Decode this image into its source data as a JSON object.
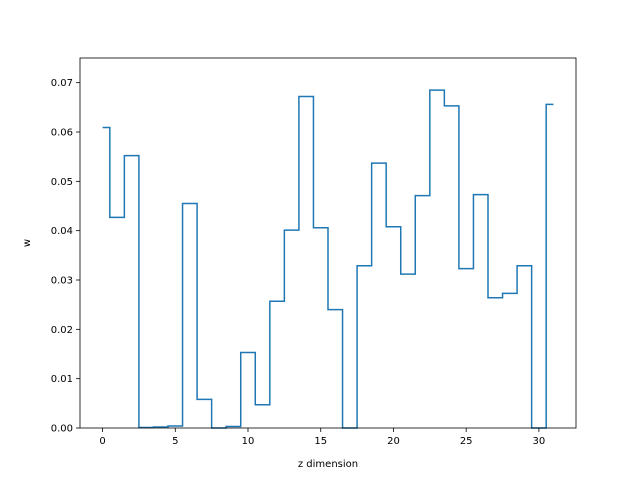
{
  "chart_data": {
    "type": "line",
    "drawstyle": "steps-mid",
    "xlabel": "z dimension",
    "ylabel": "w",
    "xlim": [
      -1.55,
      32.55
    ],
    "ylim": [
      0.0,
      0.075
    ],
    "xticks": [
      0,
      5,
      10,
      15,
      20,
      25,
      30
    ],
    "yticks": [
      0.0,
      0.01,
      0.02,
      0.03,
      0.04,
      0.05,
      0.06,
      0.07
    ],
    "ytick_labels": [
      "0.00",
      "0.01",
      "0.02",
      "0.03",
      "0.04",
      "0.05",
      "0.06",
      "0.07"
    ],
    "grid": false,
    "series": [
      {
        "color": "#1f77b4",
        "x": [
          0,
          1,
          2,
          3,
          4,
          5,
          6,
          7,
          8,
          9,
          10,
          11,
          12,
          13,
          14,
          15,
          16,
          17,
          18,
          19,
          20,
          21,
          22,
          23,
          24,
          25,
          26,
          27,
          28,
          29,
          30,
          31
        ],
        "y": [
          0.0609,
          0.0427,
          0.0552,
          0.0001,
          0.0002,
          0.0004,
          0.0455,
          0.0058,
          0.0,
          0.0003,
          0.0153,
          0.0047,
          0.0257,
          0.0401,
          0.0672,
          0.0406,
          0.024,
          0.0,
          0.0329,
          0.0537,
          0.0408,
          0.0312,
          0.0471,
          0.0685,
          0.0653,
          0.0323,
          0.0473,
          0.0264,
          0.0273,
          0.0329,
          0.0,
          0.0656
        ]
      }
    ]
  }
}
